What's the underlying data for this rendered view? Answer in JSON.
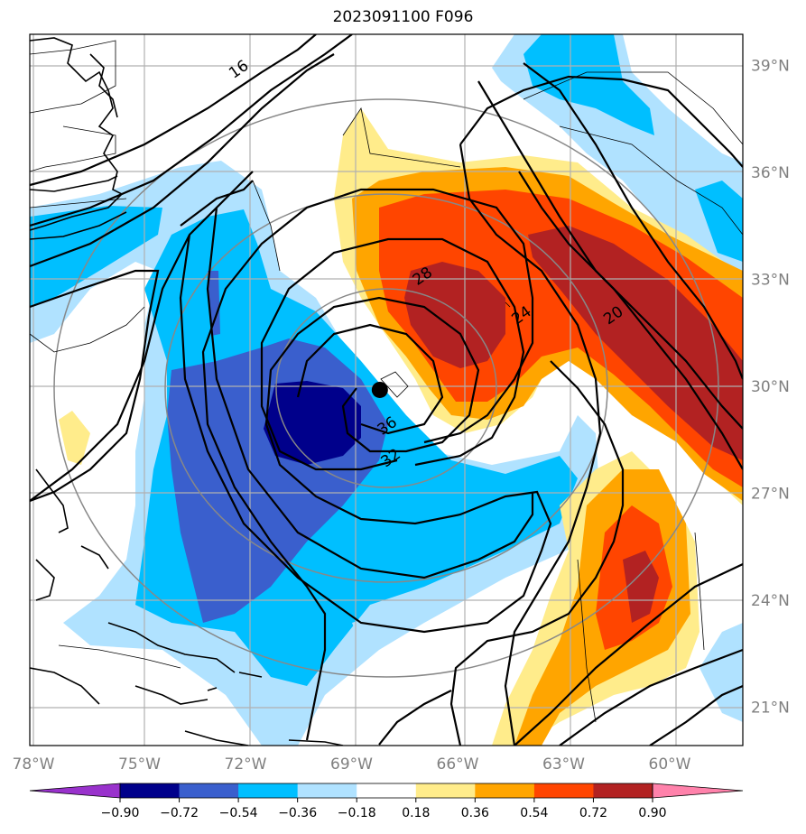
{
  "title": "2023091100 F096",
  "map": {
    "lon_range": [
      -78,
      -57.6
    ],
    "lat_range": [
      19.5,
      39.8
    ],
    "lon_ticks": [
      {
        "value": -78,
        "label": "78°W"
      },
      {
        "value": -75,
        "label": "75°W"
      },
      {
        "value": -72,
        "label": "72°W"
      },
      {
        "value": -69,
        "label": "69°W"
      },
      {
        "value": -66,
        "label": "66°W"
      },
      {
        "value": -63,
        "label": "63°W"
      },
      {
        "value": -60,
        "label": "60°W"
      }
    ],
    "lat_ticks": [
      {
        "value": 39,
        "label": "39°N"
      },
      {
        "value": 36,
        "label": "36°N"
      },
      {
        "value": 33,
        "label": "33°N"
      },
      {
        "value": 30,
        "label": "30°N"
      },
      {
        "value": 27,
        "label": "27°N"
      },
      {
        "value": 24,
        "label": "24°N"
      },
      {
        "value": 21,
        "label": "21°N"
      }
    ],
    "storm_center": {
      "lon": -68.2,
      "lat": 29.9
    },
    "contour_labels": [
      {
        "text": "16",
        "lon": -72.2,
        "lat": 38.9
      },
      {
        "text": "28",
        "lon": -67.0,
        "lat": 33.1
      },
      {
        "text": "24",
        "lon": -64.2,
        "lat": 32.0
      },
      {
        "text": "20",
        "lon": -61.6,
        "lat": 32.0
      },
      {
        "text": "36",
        "lon": -68.0,
        "lat": 28.9
      },
      {
        "text": "32",
        "lon": -67.9,
        "lat": 28.0
      }
    ],
    "grid_color": "#b0b0b0",
    "tick_color": "#808080"
  },
  "colorbar": {
    "labels": [
      "−0.90",
      "−0.72",
      "−0.54",
      "−0.36",
      "−0.18",
      "0.18",
      "0.36",
      "0.54",
      "0.72",
      "0.90"
    ],
    "colors": [
      "#9932cc",
      "#00008b",
      "#3a5fcd",
      "#00bfff",
      "#b0e2ff",
      "#ffffff",
      "#ffec8b",
      "#ffa500",
      "#ff4500",
      "#b22222",
      "#ff82ab"
    ]
  }
}
